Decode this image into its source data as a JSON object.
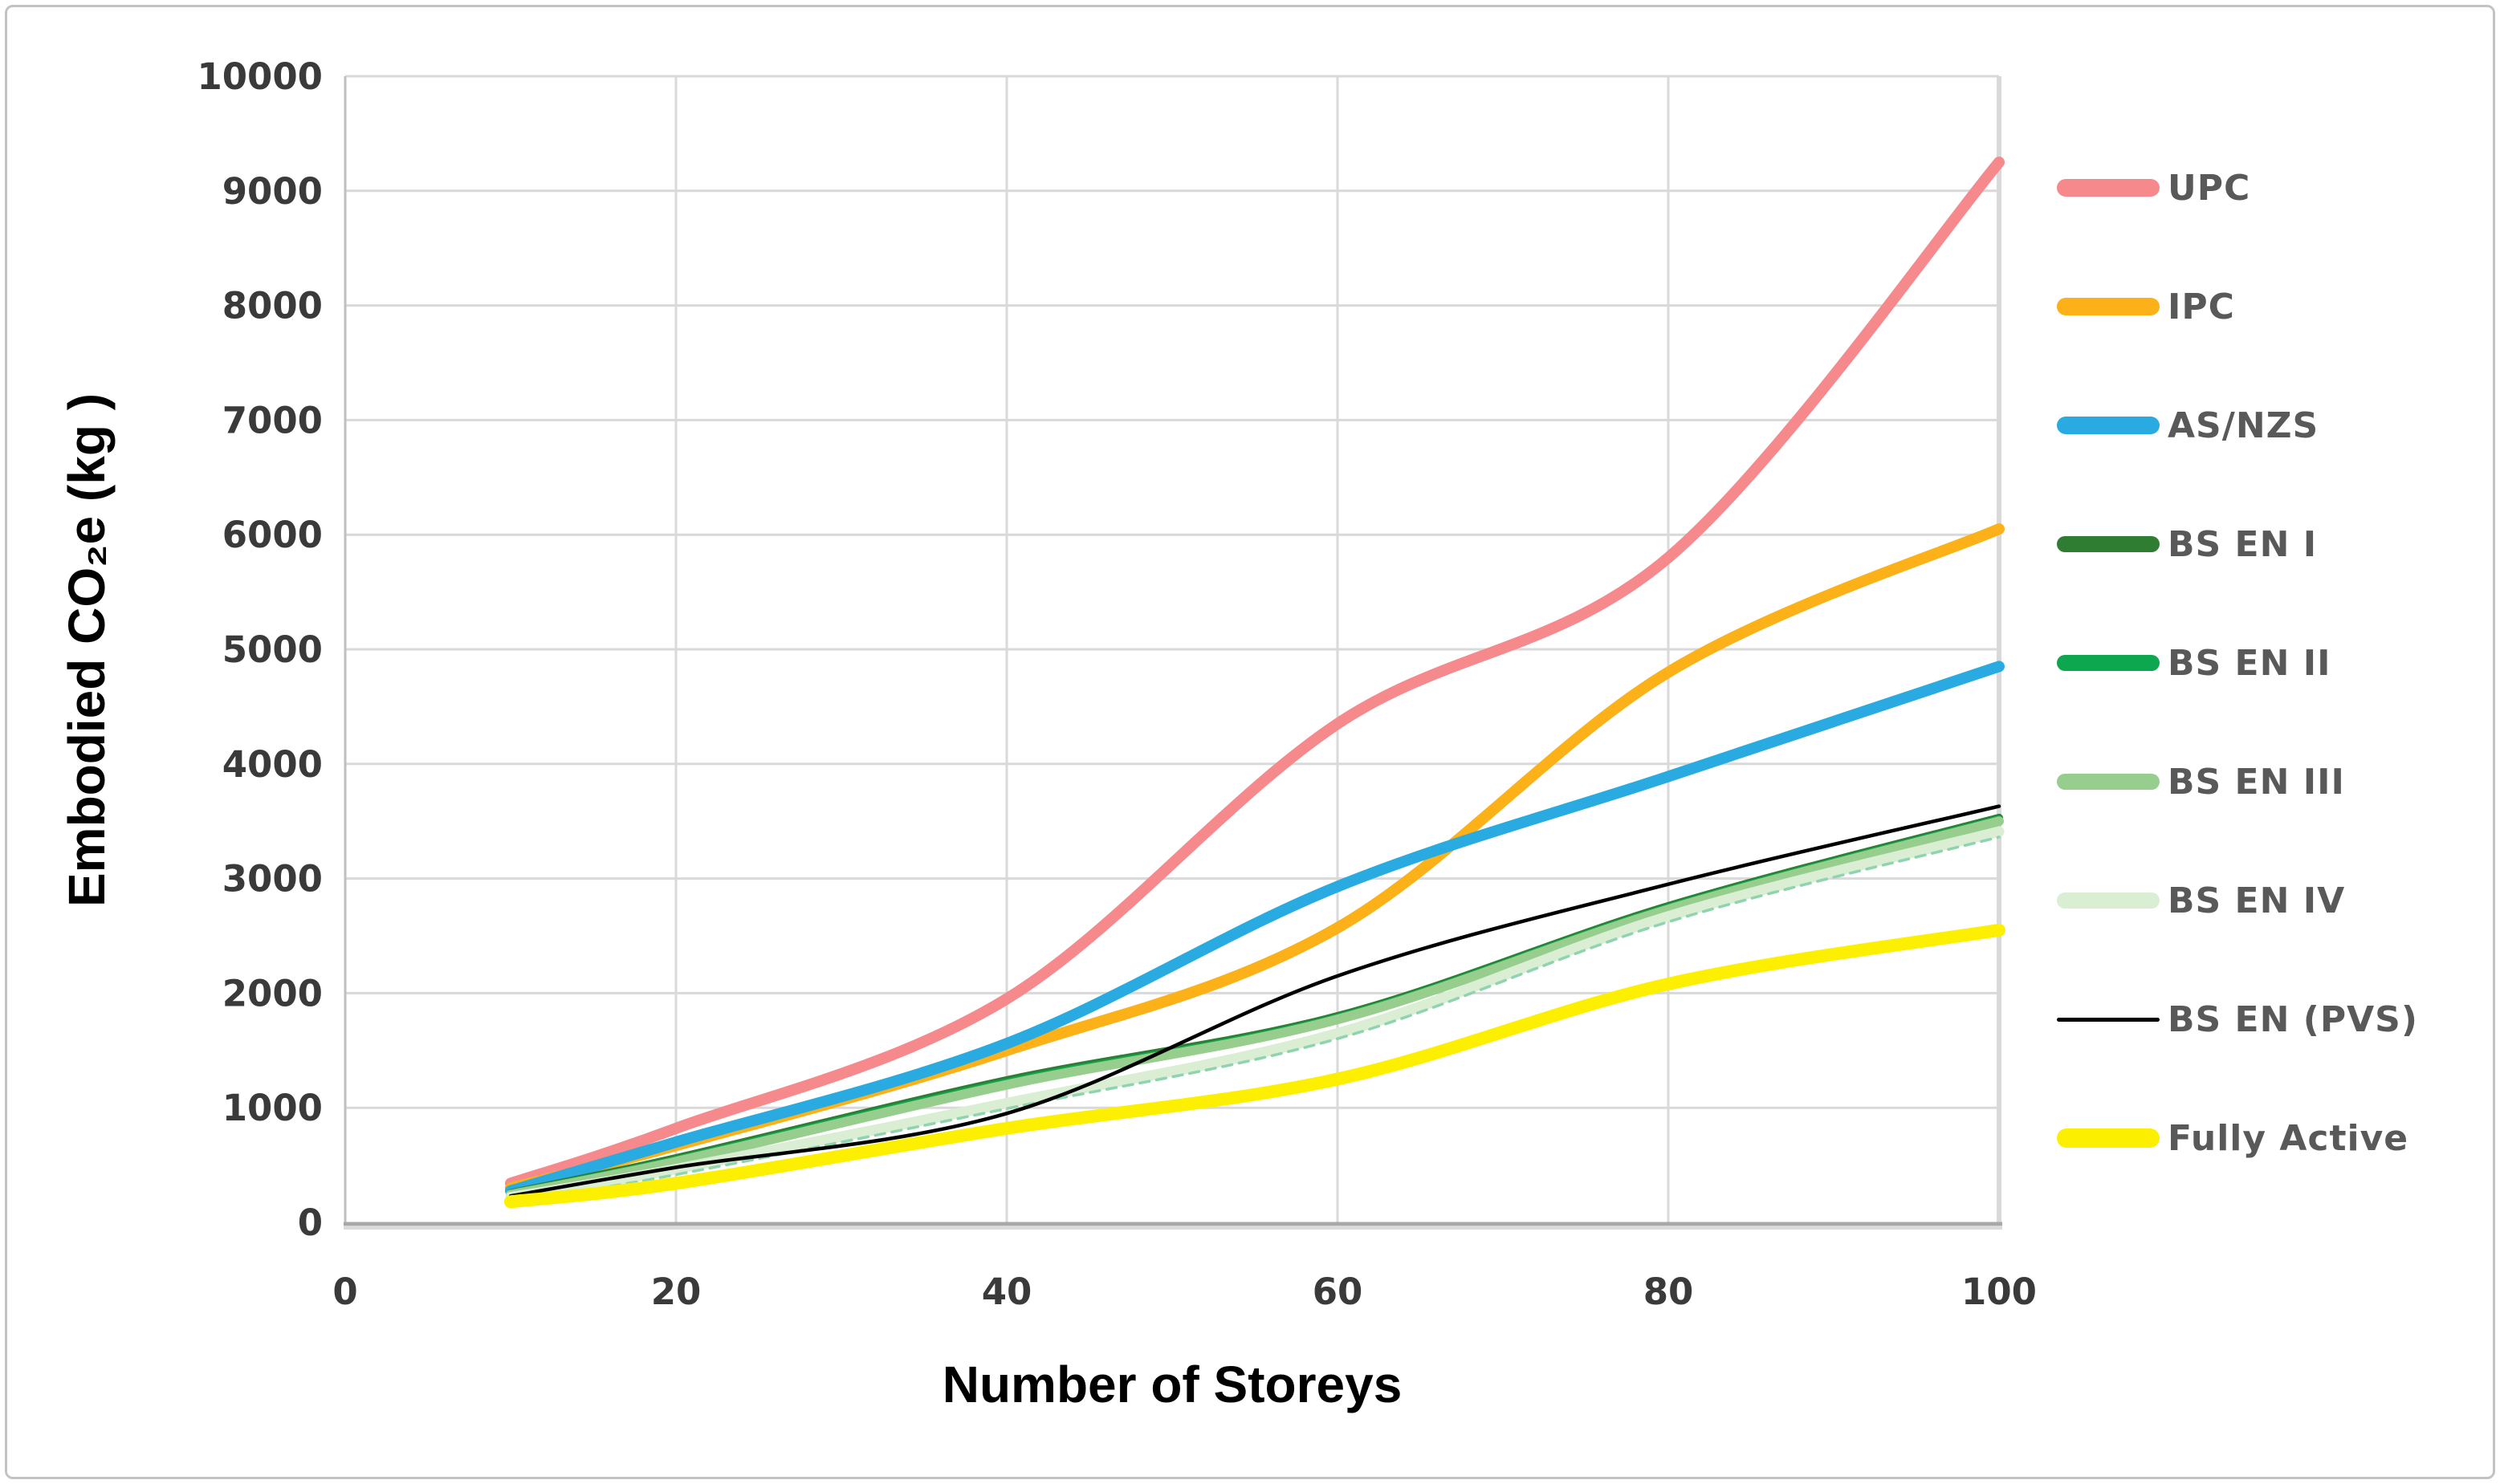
{
  "chart_data": {
    "type": "line",
    "title": "",
    "xlabel": "Number of Storeys",
    "ylabel": "Embodied  CO₂e (kg )",
    "xlim": [
      0,
      100
    ],
    "ylim": [
      0,
      10000
    ],
    "x_ticks": [
      0,
      20,
      40,
      60,
      80,
      100
    ],
    "y_ticks": [
      0,
      1000,
      2000,
      3000,
      4000,
      5000,
      6000,
      7000,
      8000,
      9000,
      10000
    ],
    "grid": true,
    "legend_position": "right",
    "x": [
      10,
      20,
      40,
      60,
      80,
      100
    ],
    "series": [
      {
        "name": "UPC",
        "color": "#F5898C",
        "line_width": 14,
        "legend_thickness": 22,
        "values": [
          340,
          820,
          1950,
          4350,
          5800,
          9250
        ]
      },
      {
        "name": "IPC",
        "color": "#FBB117",
        "line_width": 14,
        "legend_thickness": 22,
        "values": [
          300,
          670,
          1500,
          2570,
          4800,
          6050
        ]
      },
      {
        "name": "AS/NZS",
        "color": "#29ABE2",
        "line_width": 14,
        "legend_thickness": 22,
        "values": [
          275,
          700,
          1560,
          2930,
          3890,
          4850
        ]
      },
      {
        "name": "BS EN I",
        "color": "#2E7D32",
        "line_width": 10,
        "legend_thickness": 20,
        "values": [
          255,
          560,
          1240,
          1800,
          2760,
          3530
        ]
      },
      {
        "name": "BS EN II",
        "color": "#0CA74F",
        "line_width": 10,
        "legend_thickness": 20,
        "values": [
          248,
          545,
          1220,
          1785,
          2745,
          3515
        ]
      },
      {
        "name": "BS EN III",
        "color": "#97CE8E",
        "line_width": 12,
        "legend_thickness": 20,
        "values": [
          242,
          530,
          1200,
          1770,
          2730,
          3500
        ]
      },
      {
        "name": "BS EN IV",
        "color": "#D9EED3",
        "line_width": 13,
        "legend_thickness": 20,
        "values": [
          220,
          465,
          1040,
          1650,
          2670,
          3410
        ],
        "edge_dash": {
          "color": "#8FD4AE",
          "offset": 48,
          "width": 3.5,
          "dasharray": "12 9"
        }
      },
      {
        "name": "BS EN (PVS)",
        "color": "#000000",
        "line_width": 4.5,
        "legend_thickness": 5,
        "values": [
          230,
          480,
          950,
          2150,
          2950,
          3630
        ]
      },
      {
        "name": "Fully Active",
        "color": "#FCF000",
        "line_width": 16,
        "legend_thickness": 24,
        "values": [
          180,
          340,
          820,
          1250,
          2080,
          2550
        ]
      }
    ],
    "colors": {
      "gridline": "#D9D9D9",
      "axis_line": "#BFBFBF",
      "bottom_axis": "#A8A8A8",
      "bottom_axis_shadow": "#DBDBDB",
      "tick_label": "#3A3A3A",
      "legend_label": "#595959"
    }
  }
}
